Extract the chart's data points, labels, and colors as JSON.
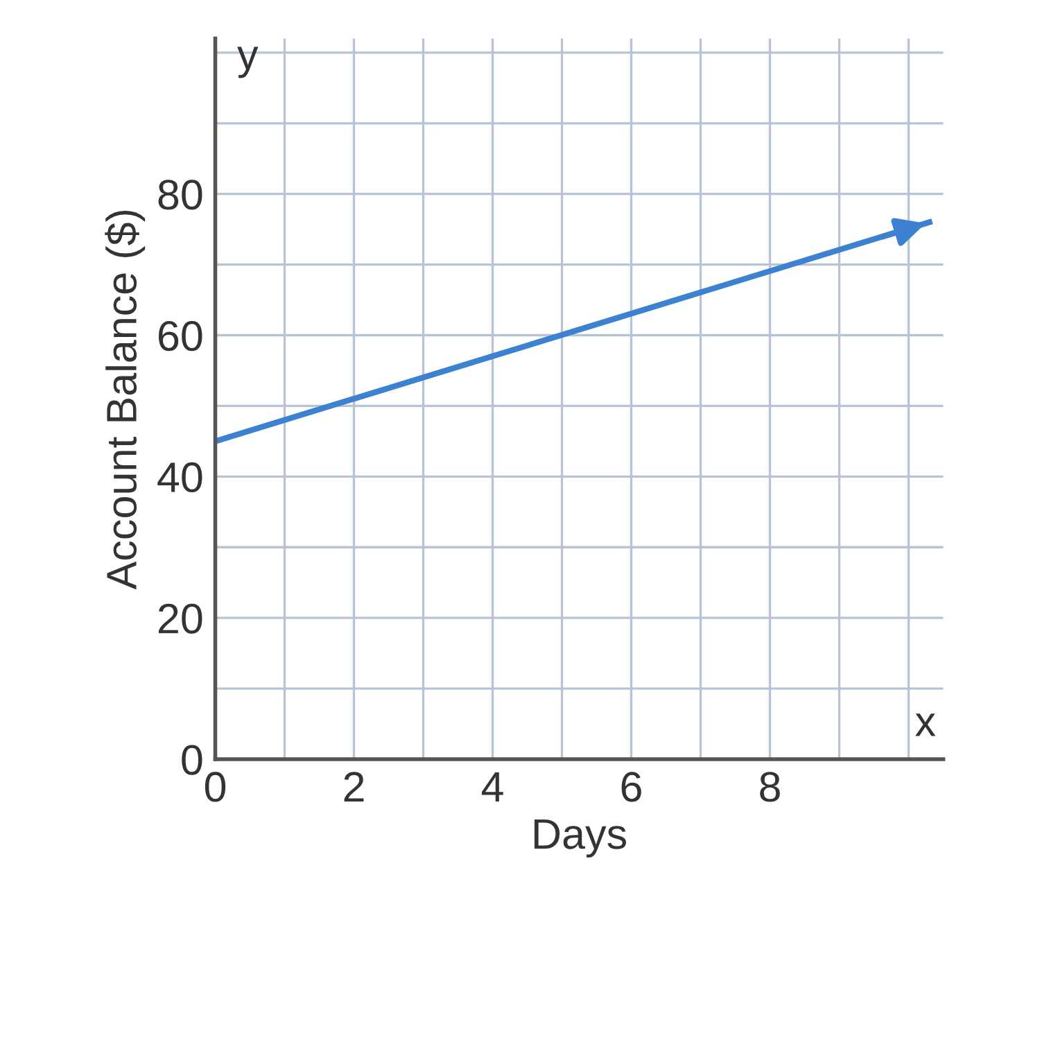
{
  "chart_data": {
    "type": "line",
    "xlabel": "Days",
    "ylabel": "Account Balance ($)",
    "x": [
      0,
      10.3
    ],
    "series": [
      {
        "color": "#3d82d0",
        "values": [
          45,
          76
        ]
      }
    ],
    "xlim": [
      0,
      10.5
    ],
    "ylim": [
      0,
      102
    ],
    "xticks": [
      0,
      {
        "value": 1,
        "label": null
      },
      2,
      {
        "value": 3,
        "label": null
      },
      4,
      {
        "value": 5,
        "label": null
      },
      6,
      {
        "value": 7,
        "label": null
      },
      8,
      {
        "value": 9,
        "label": null
      },
      {
        "value": 10,
        "label": null
      }
    ],
    "yticks": [
      0,
      {
        "value": 10,
        "label": null
      },
      20,
      {
        "value": 30,
        "label": null
      },
      40,
      {
        "value": 50,
        "label": null
      },
      60,
      {
        "value": 70,
        "label": null
      },
      80,
      {
        "value": 90,
        "label": null
      },
      {
        "value": 100,
        "label": null
      }
    ],
    "grid": true,
    "marker": "none",
    "line_style": "solid",
    "annotations": [
      "y",
      "x"
    ]
  }
}
